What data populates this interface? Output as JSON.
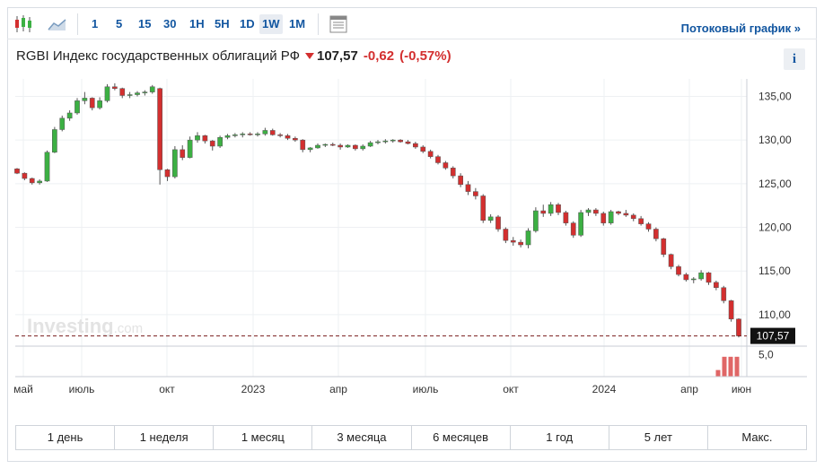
{
  "toolbar": {
    "chart_type_icons": [
      "candlestick-chart-icon",
      "area-chart-icon"
    ],
    "intervals": [
      "1",
      "5",
      "15",
      "30",
      "1H",
      "5H",
      "1D",
      "1W",
      "1M"
    ],
    "active_interval": "1W",
    "table_icon": "table-view-icon",
    "stream_link": "Потоковый график »"
  },
  "header": {
    "name": "RGBI Индекс государственных облигаций РФ",
    "price": "107,57",
    "change": "-0,62",
    "change_pct": "(-0,57%)",
    "info_label": "i"
  },
  "colors": {
    "up": "#3cb043",
    "down": "#d32f2f",
    "volume": "#e06666",
    "accent": "#1256a0"
  },
  "watermark": {
    "brand": "Investing",
    "suffix": ".com"
  },
  "periods": [
    "1 день",
    "1 неделя",
    "1 месяц",
    "3 месяца",
    "6 месяцев",
    "1 год",
    "5 лет",
    "Макс."
  ],
  "chart_data": {
    "type": "candlestick",
    "interval": "1W",
    "y_ticks": [
      "135,00",
      "130,00",
      "125,00",
      "120,00",
      "115,00",
      "110,00"
    ],
    "ylim": [
      106.5,
      137
    ],
    "last_price": 107.57,
    "last_price_label": "107,57",
    "x_ticks": [
      "май",
      "июль",
      "окт",
      "2023",
      "апр",
      "июль",
      "окт",
      "2024",
      "апр",
      "июн"
    ],
    "volume_axis_label": "5,0",
    "volume_values": [
      1.5,
      4.5,
      4.5,
      4.5
    ],
    "candles": [
      [
        126.7,
        126.8,
        126.1,
        126.2
      ],
      [
        126.2,
        126.3,
        125.4,
        125.6
      ],
      [
        125.6,
        125.7,
        124.9,
        125.1
      ],
      [
        125.1,
        125.5,
        124.9,
        125.3
      ],
      [
        125.3,
        128.8,
        125.2,
        128.6
      ],
      [
        128.6,
        131.5,
        128.5,
        131.2
      ],
      [
        131.2,
        132.8,
        131.0,
        132.5
      ],
      [
        132.5,
        133.4,
        132.2,
        133.1
      ],
      [
        133.1,
        134.8,
        132.9,
        134.5
      ],
      [
        134.5,
        135.5,
        134.1,
        134.8
      ],
      [
        134.8,
        134.9,
        133.4,
        133.7
      ],
      [
        133.7,
        134.9,
        133.5,
        134.5
      ],
      [
        134.5,
        136.4,
        134.3,
        136.1
      ],
      [
        136.1,
        136.5,
        135.7,
        135.9
      ],
      [
        135.9,
        136.0,
        134.8,
        135.1
      ],
      [
        135.1,
        135.5,
        134.8,
        135.2
      ],
      [
        135.2,
        135.6,
        135.0,
        135.4
      ],
      [
        135.4,
        135.7,
        135.1,
        135.5
      ],
      [
        135.5,
        136.3,
        135.3,
        136.1
      ],
      [
        135.9,
        136.0,
        124.9,
        126.6
      ],
      [
        126.6,
        126.7,
        125.3,
        125.8
      ],
      [
        125.8,
        129.3,
        125.6,
        128.9
      ],
      [
        128.9,
        129.4,
        127.7,
        128.0
      ],
      [
        128.0,
        130.4,
        127.9,
        130.0
      ],
      [
        130.0,
        130.9,
        129.7,
        130.5
      ],
      [
        130.5,
        130.6,
        129.6,
        129.9
      ],
      [
        129.9,
        130.0,
        128.8,
        129.3
      ],
      [
        129.3,
        130.5,
        129.1,
        130.3
      ],
      [
        130.3,
        130.7,
        130.1,
        130.5
      ],
      [
        130.5,
        130.8,
        130.3,
        130.6
      ],
      [
        130.6,
        130.9,
        130.3,
        130.7
      ],
      [
        130.7,
        130.9,
        130.5,
        130.6
      ],
      [
        130.6,
        130.9,
        130.4,
        130.7
      ],
      [
        130.7,
        131.4,
        130.5,
        131.1
      ],
      [
        131.1,
        131.3,
        130.5,
        130.6
      ],
      [
        130.6,
        130.8,
        130.3,
        130.5
      ],
      [
        130.5,
        130.7,
        130.0,
        130.2
      ],
      [
        130.2,
        130.4,
        129.8,
        130.0
      ],
      [
        130.0,
        130.1,
        128.6,
        128.9
      ],
      [
        128.9,
        129.2,
        128.6,
        129.1
      ],
      [
        129.1,
        129.6,
        129.0,
        129.4
      ],
      [
        129.4,
        129.6,
        129.2,
        129.5
      ],
      [
        129.5,
        129.7,
        129.3,
        129.4
      ],
      [
        129.4,
        129.6,
        128.9,
        129.2
      ],
      [
        129.2,
        129.5,
        129.1,
        129.4
      ],
      [
        129.4,
        129.5,
        128.8,
        129.0
      ],
      [
        129.0,
        129.5,
        128.8,
        129.3
      ],
      [
        129.3,
        129.9,
        129.2,
        129.7
      ],
      [
        129.7,
        130.0,
        129.5,
        129.8
      ],
      [
        129.8,
        130.1,
        129.6,
        129.9
      ],
      [
        129.9,
        130.1,
        129.7,
        130.0
      ],
      [
        130.0,
        130.1,
        129.7,
        129.8
      ],
      [
        129.8,
        130.0,
        129.5,
        129.6
      ],
      [
        129.6,
        129.8,
        129.0,
        129.2
      ],
      [
        129.2,
        129.4,
        128.5,
        128.7
      ],
      [
        128.7,
        128.9,
        127.9,
        128.1
      ],
      [
        128.1,
        128.3,
        127.2,
        127.4
      ],
      [
        127.4,
        127.6,
        126.6,
        126.8
      ],
      [
        126.8,
        127.0,
        125.6,
        125.9
      ],
      [
        125.9,
        126.2,
        124.6,
        124.9
      ],
      [
        124.9,
        125.3,
        123.7,
        124.1
      ],
      [
        124.1,
        124.5,
        123.2,
        123.6
      ],
      [
        123.6,
        123.8,
        120.5,
        120.8
      ],
      [
        120.8,
        121.5,
        120.5,
        121.2
      ],
      [
        121.2,
        121.4,
        119.5,
        119.8
      ],
      [
        119.8,
        120.0,
        118.2,
        118.5
      ],
      [
        118.5,
        118.9,
        117.9,
        118.3
      ],
      [
        118.3,
        118.6,
        117.7,
        118.0
      ],
      [
        118.0,
        119.9,
        117.6,
        119.6
      ],
      [
        119.6,
        122.3,
        119.4,
        121.9
      ],
      [
        121.9,
        122.6,
        121.2,
        121.6
      ],
      [
        121.6,
        122.9,
        121.3,
        122.6
      ],
      [
        122.6,
        122.8,
        121.4,
        121.7
      ],
      [
        121.7,
        121.9,
        120.2,
        120.5
      ],
      [
        120.5,
        120.7,
        118.8,
        119.1
      ],
      [
        119.1,
        122.0,
        118.9,
        121.7
      ],
      [
        121.7,
        122.2,
        121.3,
        122.0
      ],
      [
        122.0,
        122.2,
        121.3,
        121.6
      ],
      [
        121.6,
        121.8,
        120.2,
        120.5
      ],
      [
        120.5,
        122.0,
        120.3,
        121.8
      ],
      [
        121.8,
        121.9,
        121.4,
        121.6
      ],
      [
        121.6,
        122.0,
        121.2,
        121.4
      ],
      [
        121.4,
        121.6,
        120.7,
        121.0
      ],
      [
        121.0,
        121.3,
        120.2,
        120.4
      ],
      [
        120.4,
        120.6,
        119.5,
        119.8
      ],
      [
        119.8,
        120.0,
        118.4,
        118.7
      ],
      [
        118.7,
        118.8,
        116.6,
        116.9
      ],
      [
        116.9,
        117.0,
        115.2,
        115.5
      ],
      [
        115.5,
        115.7,
        114.4,
        114.6
      ],
      [
        114.6,
        114.8,
        113.8,
        114.0
      ],
      [
        114.0,
        114.3,
        113.6,
        114.1
      ],
      [
        114.1,
        115.1,
        113.9,
        114.8
      ],
      [
        114.8,
        114.9,
        113.4,
        113.7
      ],
      [
        113.7,
        113.9,
        112.8,
        113.1
      ],
      [
        113.1,
        113.3,
        111.3,
        111.6
      ],
      [
        111.6,
        111.7,
        109.2,
        109.5
      ],
      [
        109.5,
        109.6,
        107.4,
        107.57
      ]
    ]
  }
}
